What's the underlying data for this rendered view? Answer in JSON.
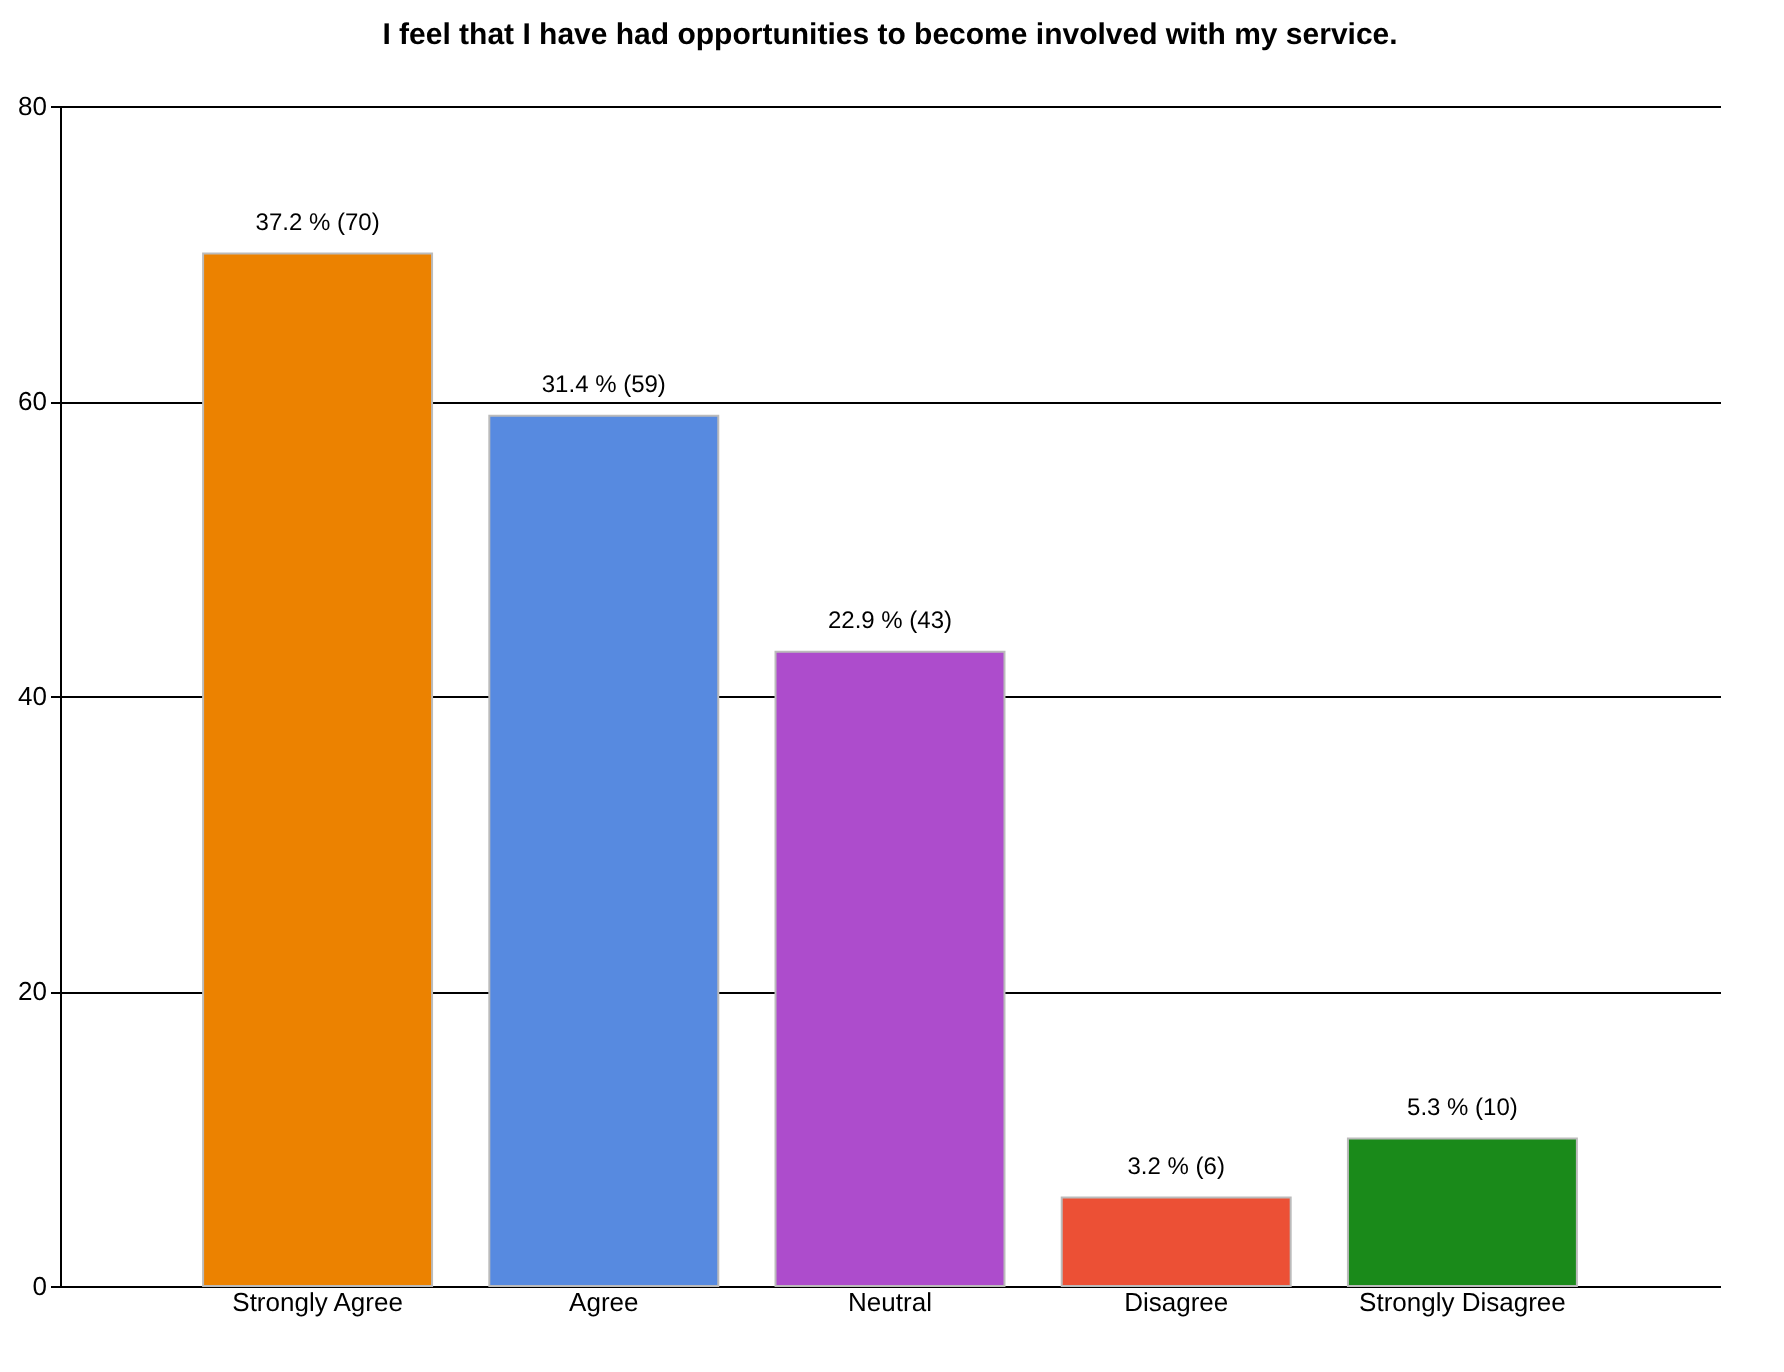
{
  "chart_data": {
    "type": "bar",
    "title": "I feel that I have had opportunities to become involved with my service.",
    "categories": [
      "Strongly Agree",
      "Agree",
      "Neutral",
      "Disagree",
      "Strongly Disagree"
    ],
    "values": [
      70,
      59,
      43,
      6,
      10
    ],
    "colors": [
      "#ec8200",
      "#578ae0",
      "#ad4ccc",
      "#ec5035",
      "#1a8a1a"
    ],
    "value_labels": [
      "37.2 % (70)",
      "31.4 % (59)",
      "22.9 % (43)",
      "3.2 % (6)",
      "5.3 % (10)"
    ],
    "ylim": [
      0,
      80
    ],
    "yticks": [
      0,
      20,
      40,
      60,
      80
    ],
    "grid": "y"
  }
}
